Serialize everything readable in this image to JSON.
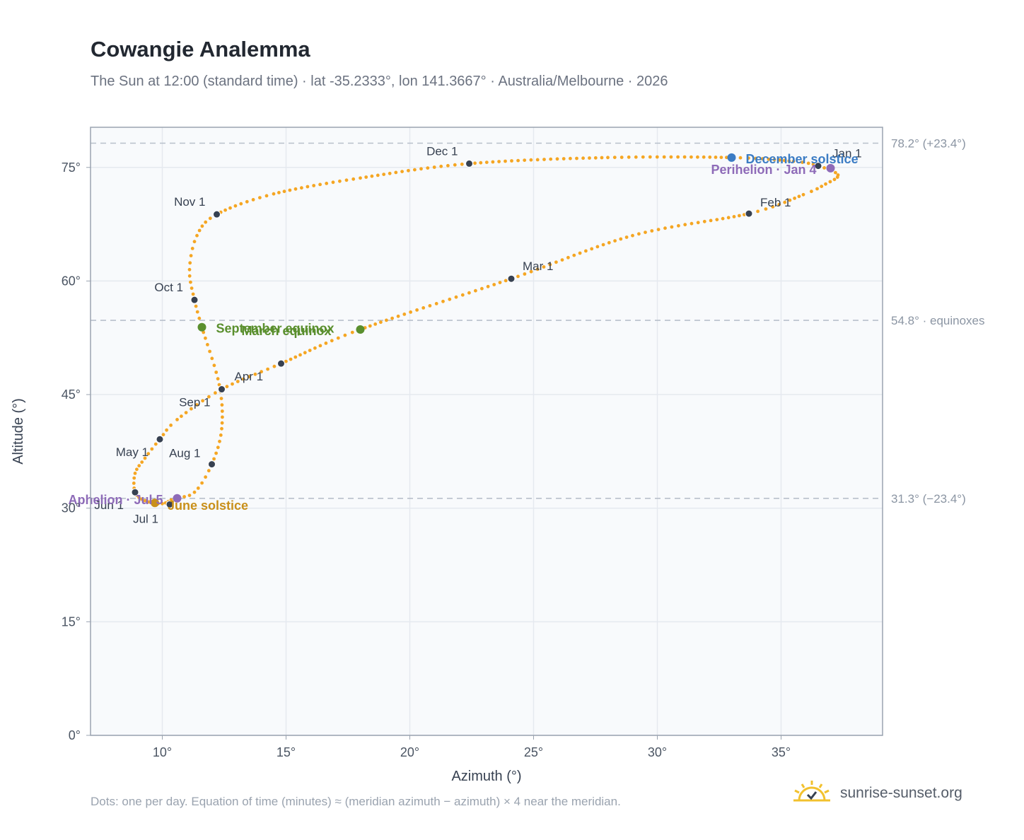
{
  "title": "Cowangie Analemma",
  "subtitle": "The Sun at 12:00 (standard time) · lat -35.2333°, lon 141.3667° · Australia/Melbourne · 2026",
  "footnote": "Dots: one per day. Equation of time (minutes) ≈ (meridian azimuth − azimuth) × 4 near the meridian.",
  "brand": {
    "text": "sunrise-sunset.org",
    "icon": "sun-check-icon"
  },
  "colors": {
    "curve": "#f5a623",
    "month_dot": "#374151",
    "equinox": "#5a8f2e",
    "june_solstice": "#c9901a",
    "december_solstice": "#3b7cc4",
    "aphelion_perihelion": "#8e6bb8",
    "plot_bg": "#f8fafc",
    "grid": "#e5e9ef",
    "ref_line": "#b8c0cb"
  },
  "chart_data": {
    "type": "scatter",
    "title": "Cowangie Analemma",
    "xlabel": "Azimuth (°)",
    "ylabel": "Altitude (°)",
    "xlim": [
      7.1,
      39.1
    ],
    "ylim": [
      0,
      80.3
    ],
    "x_ticks": [
      10,
      15,
      20,
      25,
      30,
      35
    ],
    "x_tick_labels": [
      "10°",
      "15°",
      "20°",
      "25°",
      "30°",
      "35°"
    ],
    "y_ticks": [
      0,
      15,
      30,
      45,
      60,
      75
    ],
    "y_tick_labels": [
      "0°",
      "15°",
      "30°",
      "45°",
      "60°",
      "75°"
    ],
    "grid": true,
    "reference_lines": [
      {
        "y": 78.2,
        "label": "78.2° (+23.4°)"
      },
      {
        "y": 54.8,
        "label": "54.8° · equinoxes"
      },
      {
        "y": 31.3,
        "label": "31.3° (−23.4°)"
      }
    ],
    "analemma_path": [
      [
        36.5,
        75.2
      ],
      [
        37.3,
        74.0
      ],
      [
        36.8,
        72.8
      ],
      [
        35.9,
        71.4
      ],
      [
        33.7,
        68.9
      ],
      [
        29.0,
        66.0
      ],
      [
        24.1,
        60.3
      ],
      [
        18.0,
        53.6
      ],
      [
        14.8,
        49.1
      ],
      [
        12.4,
        45.7
      ],
      [
        10.6,
        41.7
      ],
      [
        9.9,
        39.1
      ],
      [
        9.3,
        36.6
      ],
      [
        8.9,
        34.6
      ],
      [
        8.9,
        32.1
      ],
      [
        9.3,
        31.0
      ],
      [
        10.0,
        30.6
      ],
      [
        10.5,
        31.3
      ],
      [
        11.3,
        32.1
      ],
      [
        12.0,
        35.8
      ],
      [
        12.4,
        40.5
      ],
      [
        12.3,
        46.3
      ],
      [
        11.6,
        53.9
      ],
      [
        11.3,
        57.5
      ],
      [
        11.1,
        61.5
      ],
      [
        11.4,
        66.0
      ],
      [
        12.2,
        68.8
      ],
      [
        14.5,
        71.5
      ],
      [
        18.0,
        73.6
      ],
      [
        22.4,
        75.5
      ],
      [
        28.0,
        76.3
      ],
      [
        33.0,
        76.3
      ],
      [
        35.5,
        75.8
      ],
      [
        36.5,
        75.2
      ]
    ],
    "month_points": [
      {
        "label": "Jan 1",
        "x": 36.5,
        "y": 75.2
      },
      {
        "label": "Feb 1",
        "x": 33.7,
        "y": 68.9
      },
      {
        "label": "Mar 1",
        "x": 24.1,
        "y": 60.3
      },
      {
        "label": "Apr 1",
        "x": 14.8,
        "y": 49.1
      },
      {
        "label": "May 1",
        "x": 9.9,
        "y": 39.1
      },
      {
        "label": "Jun 1",
        "x": 8.9,
        "y": 32.1
      },
      {
        "label": "Jul 1",
        "x": 10.3,
        "y": 30.5
      },
      {
        "label": "Aug 1",
        "x": 12.0,
        "y": 35.8
      },
      {
        "label": "Sep 1",
        "x": 12.4,
        "y": 45.7
      },
      {
        "label": "Oct 1",
        "x": 11.3,
        "y": 57.5
      },
      {
        "label": "Nov 1",
        "x": 12.2,
        "y": 68.8
      },
      {
        "label": "Dec 1",
        "x": 22.4,
        "y": 75.5
      }
    ],
    "events": [
      {
        "label": "September equinox",
        "x": 11.6,
        "y": 53.9,
        "color_key": "equinox"
      },
      {
        "label": "March equinox",
        "x": 18.0,
        "y": 53.6,
        "color_key": "equinox"
      },
      {
        "label": "June solstice",
        "x": 9.7,
        "y": 30.7,
        "color_key": "june_solstice"
      },
      {
        "label": "December solstice",
        "x": 33.0,
        "y": 76.3,
        "color_key": "december_solstice"
      },
      {
        "label": "Aphelion · Jul 5",
        "x": 10.6,
        "y": 31.3,
        "color_key": "aphelion_perihelion"
      },
      {
        "label": "Perihelion · Jan 4",
        "x": 37.0,
        "y": 74.9,
        "color_key": "aphelion_perihelion"
      }
    ]
  }
}
